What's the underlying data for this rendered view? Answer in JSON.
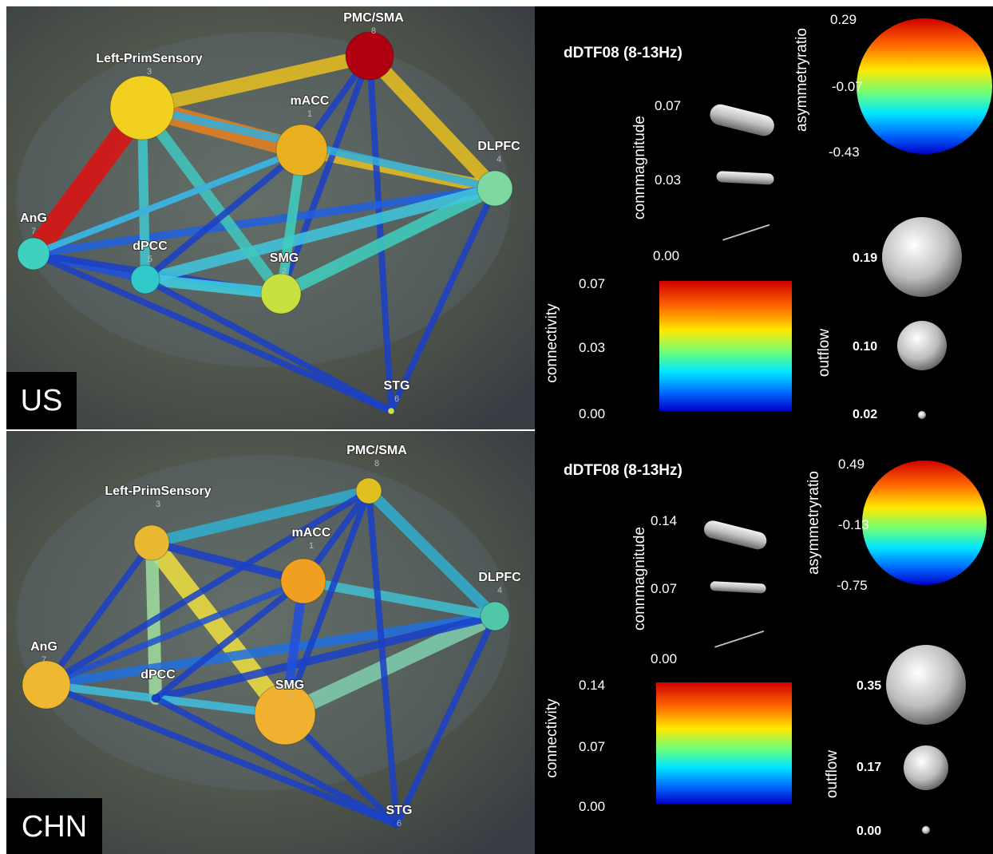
{
  "panels": [
    {
      "group": "US",
      "nodes": [
        {
          "label": "PMC/SMA",
          "index": "8"
        },
        {
          "label": "Left-PrimSensory",
          "index": "3"
        },
        {
          "label": "mACC",
          "index": "1"
        },
        {
          "label": "DLPFC",
          "index": "4"
        },
        {
          "label": "AnG",
          "index": "7"
        },
        {
          "label": "dPCC",
          "index": "5"
        },
        {
          "label": "SMG",
          "index": "2"
        },
        {
          "label": "STG",
          "index": "6"
        }
      ],
      "legend": {
        "title": "dDTF08 (8-13Hz)",
        "asymmetry": {
          "label": "asymmetryratio",
          "ticks": [
            "0.29",
            "-0.07",
            "-0.43"
          ]
        },
        "connmagnitude": {
          "label": "connmagnitude",
          "ticks": [
            "0.07",
            "0.03",
            "0.00"
          ]
        },
        "connectivity": {
          "label": "connectivity",
          "ticks": [
            "0.07",
            "0.03",
            "0.00"
          ]
        },
        "outflow": {
          "label": "outflow",
          "ticks": [
            "0.19",
            "0.10",
            "0.02"
          ]
        }
      }
    },
    {
      "group": "CHN",
      "nodes": [
        {
          "label": "PMC/SMA",
          "index": "8"
        },
        {
          "label": "Left-PrimSensory",
          "index": "3"
        },
        {
          "label": "mACC",
          "index": "1"
        },
        {
          "label": "DLPFC",
          "index": "4"
        },
        {
          "label": "AnG",
          "index": "7"
        },
        {
          "label": "dPCC",
          "index": "5"
        },
        {
          "label": "SMG",
          "index": "2"
        },
        {
          "label": "STG",
          "index": "6"
        }
      ],
      "legend": {
        "title": "dDTF08 (8-13Hz)",
        "asymmetry": {
          "label": "asymmetryratio",
          "ticks": [
            "0.49",
            "-0.13",
            "-0.75"
          ]
        },
        "connmagnitude": {
          "label": "connmagnitude",
          "ticks": [
            "0.14",
            "0.07",
            "0.00"
          ]
        },
        "connectivity": {
          "label": "connectivity",
          "ticks": [
            "0.14",
            "0.07",
            "0.00"
          ]
        },
        "outflow": {
          "label": "outflow",
          "ticks": [
            "0.35",
            "0.17",
            "0.00"
          ]
        }
      }
    }
  ]
}
